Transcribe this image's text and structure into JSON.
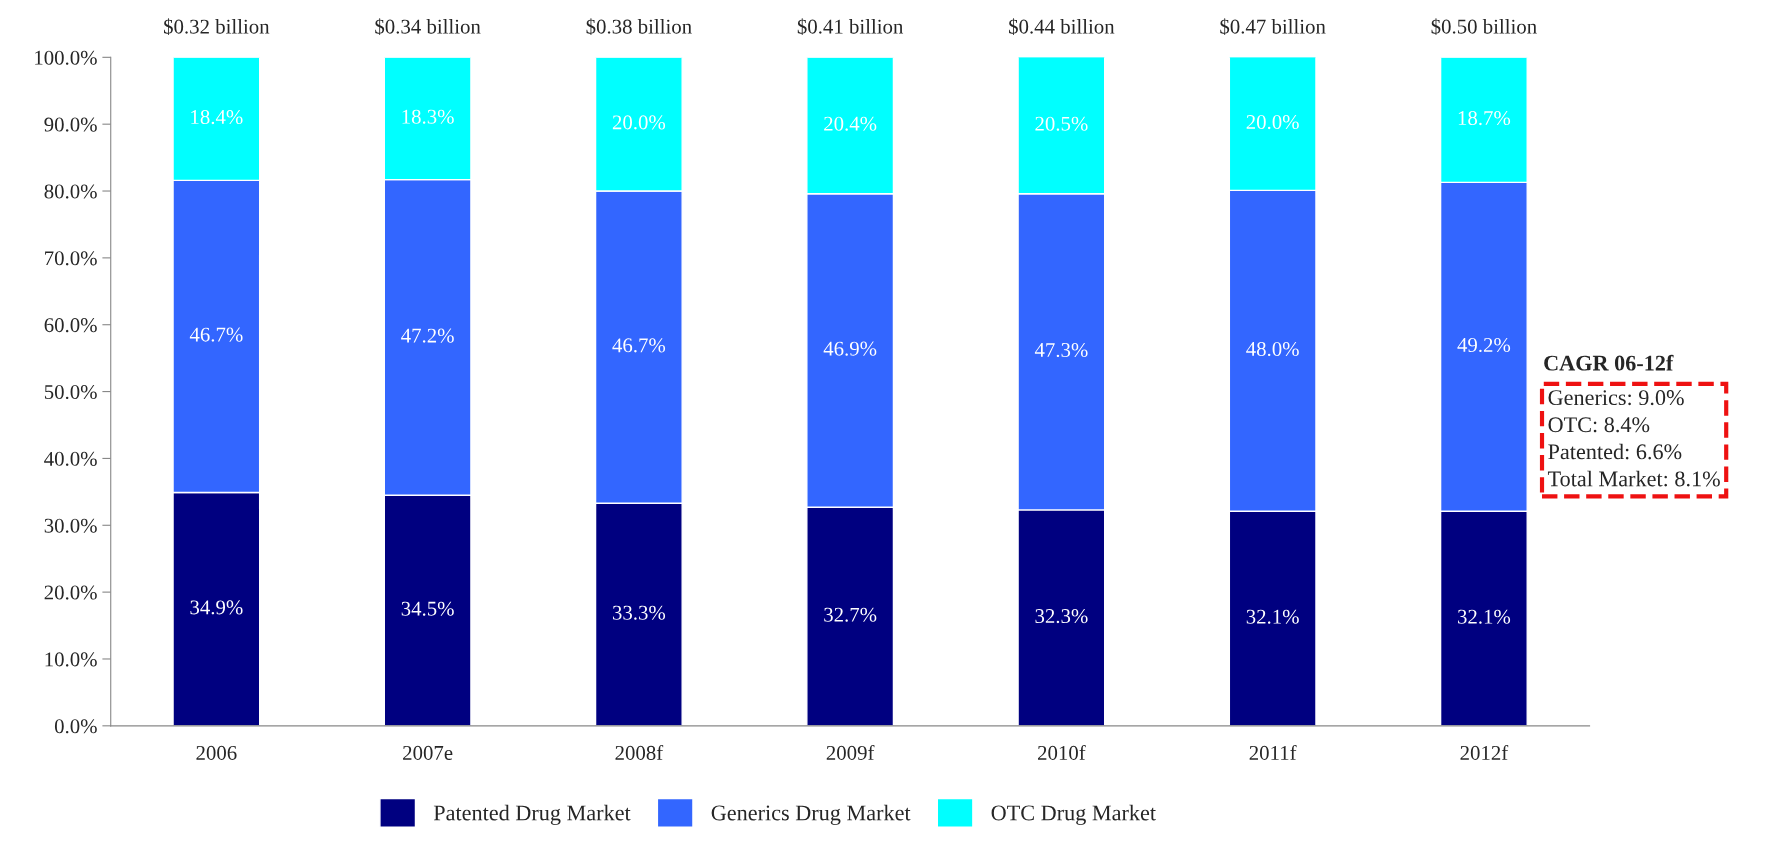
{
  "chart_data": {
    "type": "bar",
    "stacked": true,
    "categories": [
      "2006",
      "2007e",
      "2008f",
      "2009f",
      "2010f",
      "2011f",
      "2012f"
    ],
    "series": [
      {
        "name": "Patented Drug Market",
        "color": "#000080",
        "values": [
          34.9,
          34.5,
          33.3,
          32.7,
          32.3,
          32.1,
          32.1
        ],
        "value_labels": [
          "34.9%",
          "34.5%",
          "33.3%",
          "32.7%",
          "32.3%",
          "32.1%",
          "32.1%"
        ]
      },
      {
        "name": "Generics Drug Market",
        "color": "#3366ff",
        "values": [
          46.7,
          47.2,
          46.7,
          46.9,
          47.3,
          48.0,
          49.2
        ],
        "value_labels": [
          "46.7%",
          "47.2%",
          "46.7%",
          "46.9%",
          "47.3%",
          "48.0%",
          "49.2%"
        ]
      },
      {
        "name": "OTC Drug Market",
        "color": "#00ffff",
        "values": [
          18.4,
          18.3,
          20.0,
          20.4,
          20.5,
          20.0,
          18.7
        ],
        "value_labels": [
          "18.4%",
          "18.3%",
          "20.0%",
          "20.4%",
          "20.5%",
          "20.0%",
          "18.7%"
        ]
      }
    ],
    "ylim": [
      0,
      100
    ],
    "yticks": [
      {
        "value": 0,
        "label": "0.0%"
      },
      {
        "value": 10,
        "label": "10.0%"
      },
      {
        "value": 20,
        "label": "20.0%"
      },
      {
        "value": 30,
        "label": "30.0%"
      },
      {
        "value": 40,
        "label": "40.0%"
      },
      {
        "value": 50,
        "label": "50.0%"
      },
      {
        "value": 60,
        "label": "60.0%"
      },
      {
        "value": 70,
        "label": "70.0%"
      },
      {
        "value": 80,
        "label": "80.0%"
      },
      {
        "value": 90,
        "label": "90.0%"
      },
      {
        "value": 100,
        "label": "100.0%"
      }
    ],
    "annotations": [
      "CAGR 06-12f",
      "Generics: 9.0%\nOTC: 8.4%\nPatented: 6.6%\nTotal Market: 8.1%",
      {
        "text": "$0.32 billion",
        "x": "2006",
        "y": 100
      },
      {
        "text": "$0.34 billion",
        "x": "2007e",
        "y": 100
      },
      {
        "text": "$0.38 billion",
        "x": "2008f",
        "y": 100
      },
      {
        "text": "$0.41 billion",
        "x": "2009f",
        "y": 100
      },
      {
        "text": "$0.44 billion",
        "x": "2010f",
        "y": 100
      },
      {
        "text": "$0.47 billion",
        "x": "2011f",
        "y": 100
      },
      {
        "text": "$0.50 billion",
        "x": "2012f",
        "y": 100
      }
    ],
    "legend": "bottom",
    "grid": false
  }
}
